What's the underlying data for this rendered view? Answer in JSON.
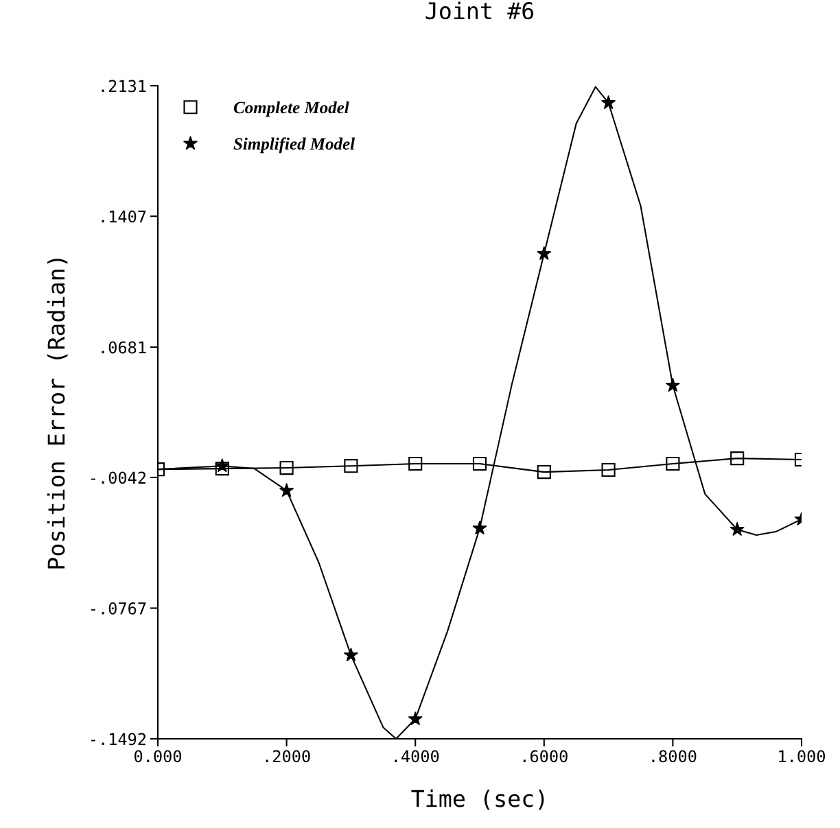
{
  "chart_data": {
    "type": "line",
    "title": "Joint #6",
    "xlabel": "Time (sec)",
    "ylabel": "Position Error (Radian)",
    "xlim": [
      0,
      1
    ],
    "ylim": [
      -0.1492,
      0.2131
    ],
    "xticks": [
      {
        "value": 0,
        "label": "0.000"
      },
      {
        "value": 0.2,
        "label": ".2000"
      },
      {
        "value": 0.4,
        "label": ".4000"
      },
      {
        "value": 0.6,
        "label": ".6000"
      },
      {
        "value": 0.8,
        "label": ".8000"
      },
      {
        "value": 1,
        "label": "1.000"
      }
    ],
    "yticks": [
      {
        "value": -0.1492,
        "label": "-.1492"
      },
      {
        "value": -0.0767,
        "label": "-.0767"
      },
      {
        "value": -0.0042,
        "label": "-.0042"
      },
      {
        "value": 0.0681,
        "label": ".0681"
      },
      {
        "value": 0.1407,
        "label": ".1407"
      },
      {
        "value": 0.2131,
        "label": ".2131"
      }
    ],
    "legend": "top left",
    "series": [
      {
        "name": "Complete Model",
        "marker": "square",
        "color": "#000000",
        "x": [
          0,
          0.1,
          0.2,
          0.3,
          0.4,
          0.5,
          0.6,
          0.7,
          0.8,
          0.9,
          1.0
        ],
        "values": [
          0.0003,
          0.0007,
          0.0011,
          0.0022,
          0.0034,
          0.0034,
          -0.0012,
          0.0,
          0.0034,
          0.0064,
          0.0057
        ]
      },
      {
        "type": "line",
        "marker": "none",
        "color": "#000000",
        "x": [
          0,
          0.1,
          0.15,
          0.2,
          0.25,
          0.3,
          0.35,
          0.37,
          0.4,
          0.45,
          0.5,
          0.55,
          0.6,
          0.65,
          0.68,
          0.7,
          0.75,
          0.8,
          0.85,
          0.9,
          0.93,
          0.96,
          1.0
        ],
        "values": [
          0.0003,
          0.0022,
          0.0007,
          -0.0115,
          -0.0514,
          -0.1028,
          -0.1428,
          -0.1492,
          -0.1382,
          -0.0895,
          -0.0324,
          0.0475,
          0.1199,
          0.1922,
          0.2125,
          0.2036,
          0.1465,
          0.0468,
          -0.0134,
          -0.0331,
          -0.0362,
          -0.0343,
          -0.0274
        ]
      },
      {
        "name": "Simplified Model",
        "type": "scatter",
        "marker": "star",
        "color": "#000000",
        "x": [
          0.1,
          0.2,
          0.3,
          0.4,
          0.5,
          0.6,
          0.7,
          0.8,
          0.9,
          1.0
        ],
        "values": [
          0.0022,
          -0.0115,
          -0.1028,
          -0.1382,
          -0.0324,
          0.1199,
          0.2036,
          0.0468,
          -0.0331,
          -0.0274
        ]
      }
    ]
  }
}
